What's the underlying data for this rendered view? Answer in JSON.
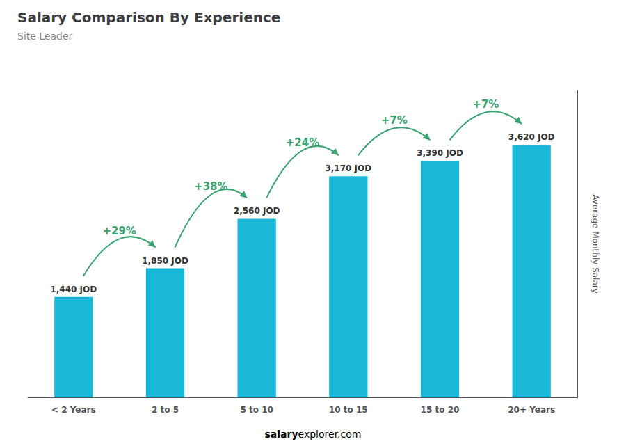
{
  "chart_data": {
    "type": "bar",
    "title": "Salary Comparison By Experience",
    "subtitle": "Site Leader",
    "ylabel": "Average Monthly Salary",
    "categories": [
      "< 2 Years",
      "2 to 5",
      "5 to 10",
      "10 to 15",
      "15 to 20",
      "20+ Years"
    ],
    "values": [
      1440,
      1850,
      2560,
      3170,
      3390,
      3620
    ],
    "value_labels": [
      "1,440 JOD",
      "1,850 JOD",
      "2,560 JOD",
      "3,170 JOD",
      "3,390 JOD",
      "3,620 JOD"
    ],
    "data_labels": true,
    "color": "#1ab8d8",
    "ylim": [
      0,
      4400
    ],
    "tick_labels": "x",
    "grid": false,
    "annotations": [
      {
        "text": "+29%",
        "from": "< 2 Years",
        "to": "2 to 5",
        "color": "#3ba272"
      },
      {
        "text": "+38%",
        "from": "2 to 5",
        "to": "5 to 10",
        "color": "#3ba272"
      },
      {
        "text": "+24%",
        "from": "5 to 10",
        "to": "10 to 15",
        "color": "#3ba272"
      },
      {
        "text": "+7%",
        "from": "10 to 15",
        "to": "15 to 20",
        "color": "#3ba272"
      },
      {
        "text": "+7%",
        "from": "15 to 20",
        "to": "20+ Years",
        "color": "#3ba272"
      }
    ],
    "footer": [
      "salary",
      "explorer.com"
    ]
  }
}
